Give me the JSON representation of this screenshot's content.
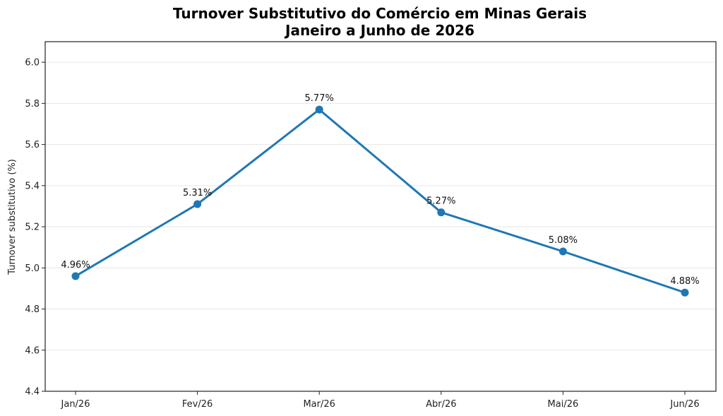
{
  "chart_data": {
    "type": "line",
    "title_line1": "Turnover Substitutivo do Comércio em Minas Gerais",
    "title_line2": "Janeiro a Junho de 2026",
    "xlabel": "",
    "ylabel": "Turnover substitutivo (%)",
    "categories": [
      "Jan/26",
      "Fev/26",
      "Mar/26",
      "Abr/26",
      "Mai/26",
      "Jun/26"
    ],
    "series": [
      {
        "values": [
          4.96,
          5.31,
          5.77,
          5.27,
          5.08,
          4.88
        ],
        "data_labels": [
          "4.96%",
          "5.31%",
          "5.77%",
          "5.27%",
          "5.08%",
          "4.88%"
        ],
        "color": "#1f77b4"
      }
    ],
    "ylim": [
      4.4,
      6.1
    ],
    "yticks": [
      "4.4",
      "4.6",
      "4.8",
      "5.0",
      "5.2",
      "5.4",
      "5.6",
      "5.8",
      "6.0"
    ],
    "grid": "horizontal",
    "legend": "none"
  }
}
